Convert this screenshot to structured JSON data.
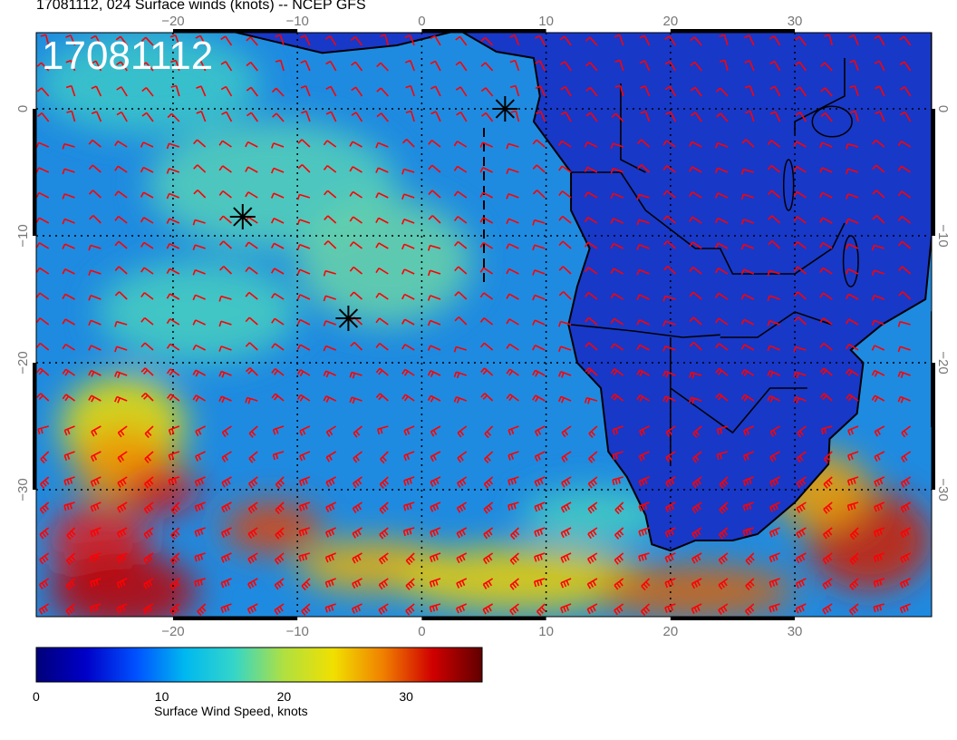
{
  "title": "17081112, 024 Surface winds (knots) -- NCEP GFS",
  "stamp": "17081112",
  "colorbar": {
    "label": "Surface Wind Speed, knots",
    "ticks": [
      {
        "value": 0,
        "label": "0"
      },
      {
        "value": 10,
        "label": "10"
      },
      {
        "value": 20,
        "label": "20"
      },
      {
        "value": 30,
        "label": "30"
      }
    ],
    "max": 36.5,
    "colors": [
      "#00007a",
      "#0000c8",
      "#0050ff",
      "#00b8f0",
      "#35d6c8",
      "#b0e040",
      "#f0e000",
      "#f08000",
      "#d00000",
      "#600000"
    ]
  },
  "map": {
    "lon_range": [
      -31,
      41
    ],
    "lat_range": [
      -40,
      6
    ],
    "lon_ticks": [
      {
        "value": -20,
        "label": "−20"
      },
      {
        "value": -10,
        "label": "−10"
      },
      {
        "value": 0,
        "label": "0"
      },
      {
        "value": 10,
        "label": "10"
      },
      {
        "value": 20,
        "label": "20"
      },
      {
        "value": 30,
        "label": "30"
      }
    ],
    "lat_ticks": [
      {
        "value": 0,
        "label": "0"
      },
      {
        "value": -10,
        "label": "−10"
      },
      {
        "value": -20,
        "label": "−20"
      },
      {
        "value": -30,
        "label": "−30"
      }
    ],
    "markers": [
      {
        "lon": 6.7,
        "lat": 0.0
      },
      {
        "lon": -14.4,
        "lat": -8.5
      },
      {
        "lon": -5.9,
        "lat": -16.5
      }
    ],
    "barb_color": "#ff0000",
    "ocean_color": "#1f8be0",
    "land_color": "#1838c8"
  }
}
